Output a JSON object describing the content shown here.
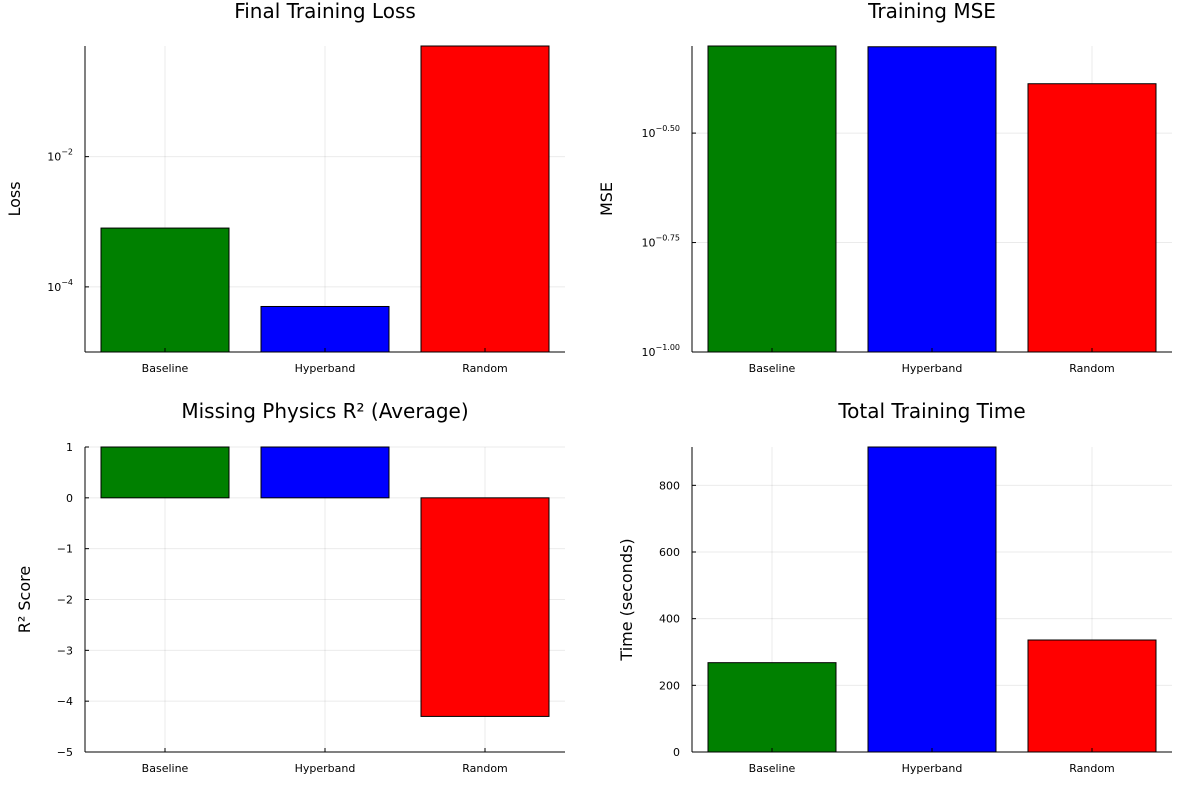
{
  "chart_data": [
    {
      "id": "loss",
      "type": "bar",
      "title": "Final Training Loss",
      "ylabel": "Loss",
      "scale": "log10",
      "ylim": [
        1e-05,
        0.5
      ],
      "yticks": [
        {
          "value": 0.0001,
          "base": "10",
          "exp": "−4"
        },
        {
          "value": 0.01,
          "base": "10",
          "exp": "−2"
        }
      ],
      "categories": [
        "Baseline",
        "Hyperband",
        "Random"
      ],
      "values": [
        0.0008,
        5e-05,
        0.5
      ],
      "colors": [
        "#008000",
        "#0000ff",
        "#ff0000"
      ],
      "grid": true
    },
    {
      "id": "mse",
      "type": "bar",
      "title": "Training MSE",
      "ylabel": "MSE",
      "scale": "log10",
      "ylim": [
        0.1,
        0.5
      ],
      "yticks": [
        {
          "value": 0.1,
          "base": "10",
          "exp": "−1.00"
        },
        {
          "value": 0.177828,
          "base": "10",
          "exp": "−0.75"
        },
        {
          "value": 0.316228,
          "base": "10",
          "exp": "−0.50"
        }
      ],
      "categories": [
        "Baseline",
        "Hyperband",
        "Random"
      ],
      "values": [
        0.5,
        0.498,
        0.41
      ],
      "colors": [
        "#008000",
        "#0000ff",
        "#ff0000"
      ],
      "grid": true
    },
    {
      "id": "r2",
      "type": "bar",
      "title": "Missing Physics R² (Average)",
      "ylabel": "R² Score",
      "scale": "linear",
      "ylim": [
        -5,
        1
      ],
      "yticks": [
        {
          "value": -5,
          "label": "−5"
        },
        {
          "value": -4,
          "label": "−4"
        },
        {
          "value": -3,
          "label": "−3"
        },
        {
          "value": -2,
          "label": "−2"
        },
        {
          "value": -1,
          "label": "−1"
        },
        {
          "value": 0,
          "label": "0"
        },
        {
          "value": 1,
          "label": "1"
        }
      ],
      "categories": [
        "Baseline",
        "Hyperband",
        "Random"
      ],
      "values": [
        1.0,
        1.0,
        -4.3
      ],
      "colors": [
        "#008000",
        "#0000ff",
        "#ff0000"
      ],
      "grid": true
    },
    {
      "id": "time",
      "type": "bar",
      "title": "Total Training Time",
      "ylabel": "Time (seconds)",
      "scale": "linear",
      "ylim": [
        0,
        915
      ],
      "yticks": [
        {
          "value": 0,
          "label": "0"
        },
        {
          "value": 200,
          "label": "200"
        },
        {
          "value": 400,
          "label": "400"
        },
        {
          "value": 600,
          "label": "600"
        },
        {
          "value": 800,
          "label": "800"
        }
      ],
      "categories": [
        "Baseline",
        "Hyperband",
        "Random"
      ],
      "values": [
        268,
        915,
        336
      ],
      "colors": [
        "#008000",
        "#0000ff",
        "#ff0000"
      ],
      "grid": true
    }
  ]
}
